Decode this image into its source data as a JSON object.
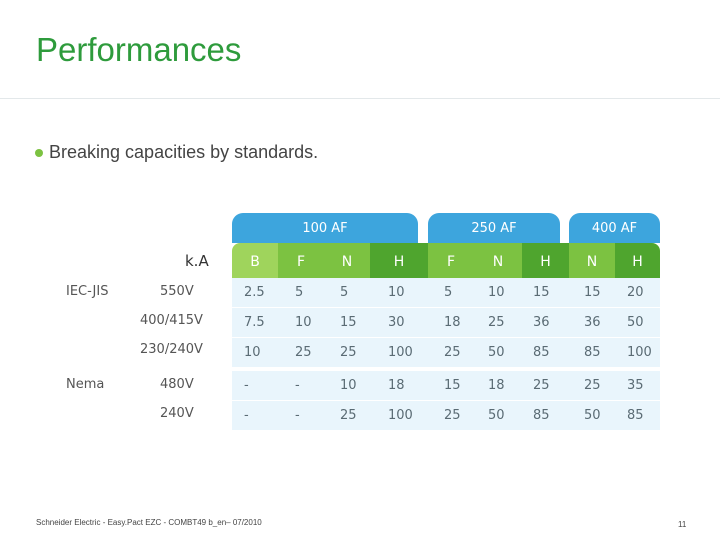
{
  "title": "Performances",
  "bullet": "Breaking capacities by standards.",
  "frames": [
    "100 AF",
    "250 AF",
    "400 AF"
  ],
  "unit_label": "k.A",
  "columns": [
    "B",
    "F",
    "N",
    "H",
    "F",
    "N",
    "H",
    "N",
    "H"
  ],
  "standards": [
    "IEC-JIS",
    "Nema"
  ],
  "rows": [
    {
      "voltage": "550V",
      "values": [
        "2.5",
        "5",
        "5",
        "10",
        "5",
        "10",
        "15",
        "15",
        "20"
      ]
    },
    {
      "voltage": "400/415V",
      "values": [
        "7.5",
        "10",
        "15",
        "30",
        "18",
        "25",
        "36",
        "36",
        "50"
      ]
    },
    {
      "voltage": "230/240V",
      "values": [
        "10",
        "25",
        "25",
        "100",
        "25",
        "50",
        "85",
        "85",
        "100"
      ]
    },
    {
      "voltage": "480V",
      "values": [
        "-",
        "-",
        "10",
        "18",
        "15",
        "18",
        "25",
        "25",
        "35"
      ]
    },
    {
      "voltage": "240V",
      "values": [
        "-",
        "-",
        "25",
        "100",
        "25",
        "50",
        "85",
        "50",
        "85"
      ]
    }
  ],
  "footer": "Schneider Electric - Easy.Pact EZC - COMBT49 b_en– 07/2010",
  "page_number": "11",
  "colors": {
    "title": "#2e9b3c",
    "caption": "#3da5dd",
    "band": "#e9f5fc"
  }
}
